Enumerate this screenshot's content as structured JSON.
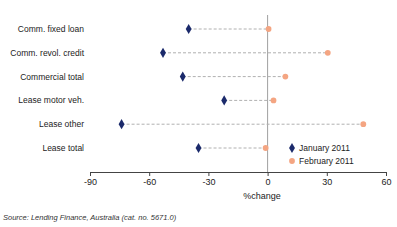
{
  "chart_data": {
    "type": "dot",
    "orientation": "horizontal",
    "categories": [
      "Comm. fixed loan",
      "Comm. revol. credit",
      "Commercial total",
      "Lease motor veh.",
      "Lease other",
      "Lease total"
    ],
    "series": [
      {
        "name": "January 2011",
        "color": "#1b2a6b",
        "marker": "diamond",
        "values": [
          -40,
          -53,
          -43,
          -22,
          -74,
          -35
        ]
      },
      {
        "name": "February 2011",
        "color": "#f4a582",
        "marker": "circle",
        "values": [
          0.5,
          30.5,
          9,
          3,
          48.5,
          -1
        ]
      }
    ],
    "xlabel": "%change",
    "xlim": [
      -90,
      60
    ],
    "xticks": [
      -90,
      -60,
      -30,
      0,
      30,
      60
    ],
    "grid": false,
    "legend": "lower right",
    "annotations": [
      "Source: Lending Finance, Australia (cat. no. 5671.0)"
    ]
  }
}
